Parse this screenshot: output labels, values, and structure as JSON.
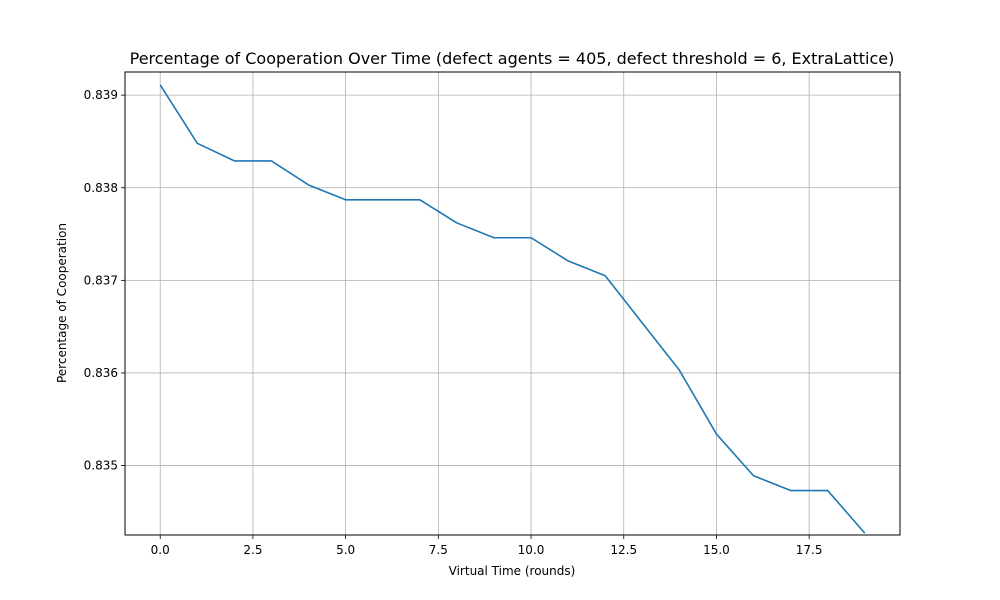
{
  "chart_data": {
    "type": "line",
    "title": "Percentage of Cooperation Over Time (defect agents = 405, defect threshold = 6, ExtraLattice)",
    "xlabel": "Virtual Time (rounds)",
    "ylabel": "Percentage of Cooperation",
    "xlim": [
      -0.95,
      19.95
    ],
    "ylim": [
      0.83425,
      0.83925
    ],
    "x_ticks": [
      0.0,
      2.5,
      5.0,
      7.5,
      10.0,
      12.5,
      15.0,
      17.5
    ],
    "x_tick_labels": [
      "0.0",
      "2.5",
      "5.0",
      "7.5",
      "10.0",
      "12.5",
      "15.0",
      "17.5"
    ],
    "y_ticks": [
      0.835,
      0.836,
      0.837,
      0.838,
      0.839
    ],
    "y_tick_labels": [
      "0.835",
      "0.836",
      "0.837",
      "0.838",
      "0.839"
    ],
    "grid": true,
    "series": [
      {
        "color": "#1f77b4",
        "x": [
          0,
          1,
          2,
          3,
          4,
          5,
          6,
          7,
          8,
          9,
          10,
          11,
          12,
          13,
          14,
          15,
          16,
          17,
          18,
          19
        ],
        "values": [
          0.83911,
          0.83848,
          0.83829,
          0.83829,
          0.83803,
          0.83787,
          0.83787,
          0.83787,
          0.83762,
          0.83746,
          0.83746,
          0.83721,
          0.83705,
          0.83654,
          0.83603,
          0.83534,
          0.83489,
          0.83473,
          0.83473,
          0.83427
        ]
      }
    ]
  }
}
